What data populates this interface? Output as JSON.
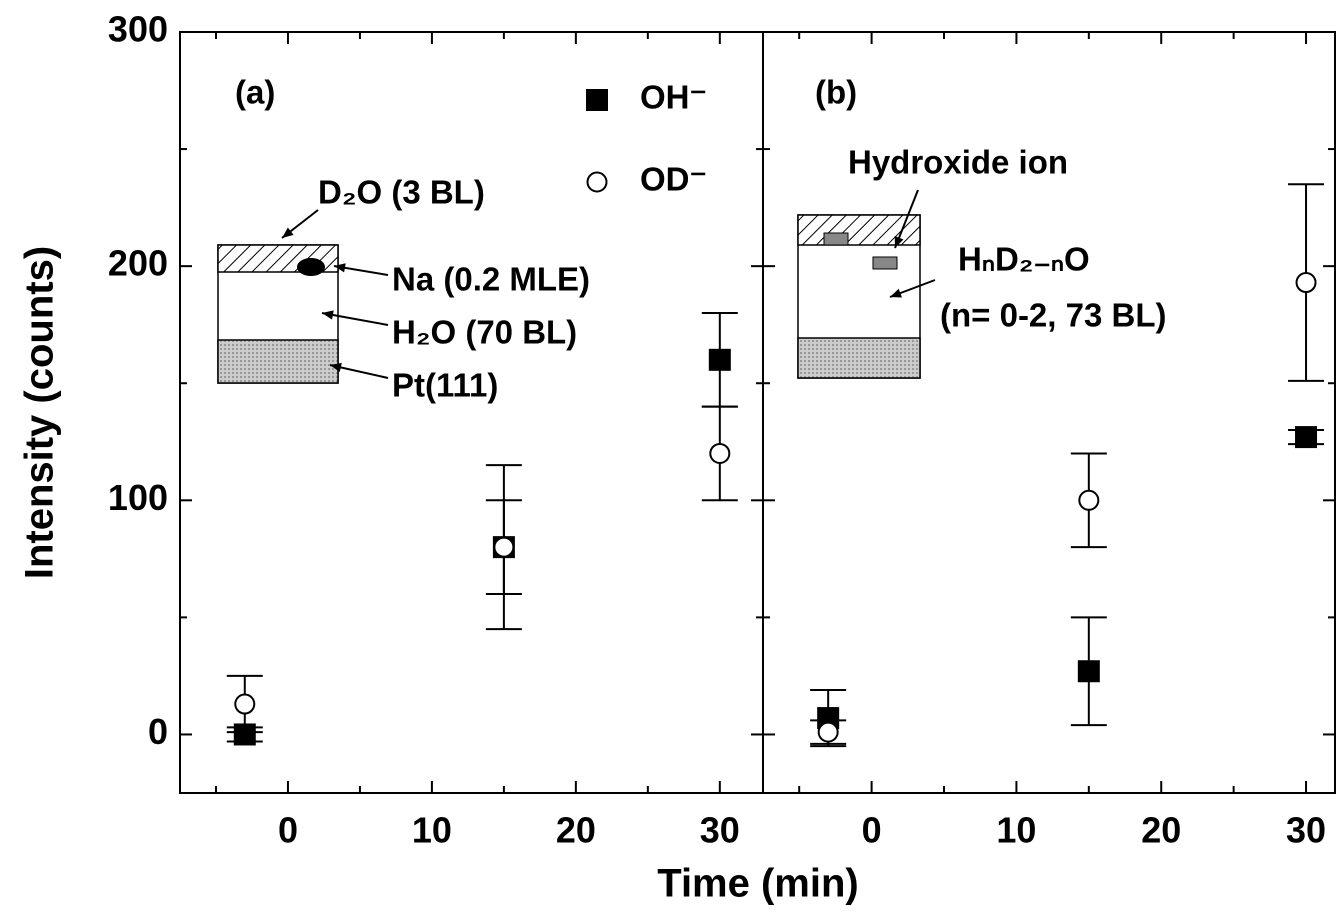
{
  "chart_data": [
    {
      "type": "scatter",
      "ylabel": "Intensity (counts)",
      "xlabel": "Time (min)",
      "xlim": [
        -7.5,
        33
      ],
      "xticks": [
        0,
        10,
        20,
        30
      ],
      "xminor": [
        -5,
        5,
        15,
        25
      ],
      "ylim": [
        -25,
        300
      ],
      "yticks": [
        0,
        100,
        200,
        300
      ],
      "yminor": [
        50,
        150,
        250
      ],
      "annotations": [
        "(a)",
        "D₂O (3 BL)",
        "Na (0.2 MLE)",
        "H₂O (70 BL)",
        "Pt(111)"
      ],
      "series": [
        {
          "name": "OH⁻",
          "marker": "square",
          "color": "#000000",
          "x": [
            -3,
            15,
            30
          ],
          "values": [
            0,
            80,
            160
          ],
          "errors": [
            3,
            20,
            20
          ]
        },
        {
          "name": "OD⁻",
          "marker": "circle",
          "color": "#000000",
          "x": [
            -3,
            15,
            30
          ],
          "values": [
            13,
            80,
            120
          ],
          "errors": [
            12,
            35,
            20
          ]
        }
      ]
    },
    {
      "type": "scatter",
      "xlim": [
        -7.5,
        32
      ],
      "xticks": [
        0,
        10,
        20,
        30
      ],
      "xminor": [
        -5,
        5,
        15,
        25
      ],
      "ylim": [
        -25,
        300
      ],
      "yticks": [
        0,
        100,
        200,
        300
      ],
      "yminor": [
        50,
        150,
        250
      ],
      "annotations": [
        "(b)",
        "Hydroxide ion",
        "HₙD₂₋ₙO",
        "(n= 0-2, 73 BL)"
      ],
      "series": [
        {
          "marker": "square",
          "color": "#000000",
          "x": [
            -3,
            15,
            30
          ],
          "values": [
            7,
            27,
            127
          ],
          "errors": [
            12,
            23,
            3
          ]
        },
        {
          "marker": "circle",
          "color": "#000000",
          "x": [
            -3,
            15,
            30
          ],
          "values": [
            1,
            100,
            193
          ],
          "errors": [
            5,
            20,
            42
          ]
        }
      ]
    }
  ]
}
